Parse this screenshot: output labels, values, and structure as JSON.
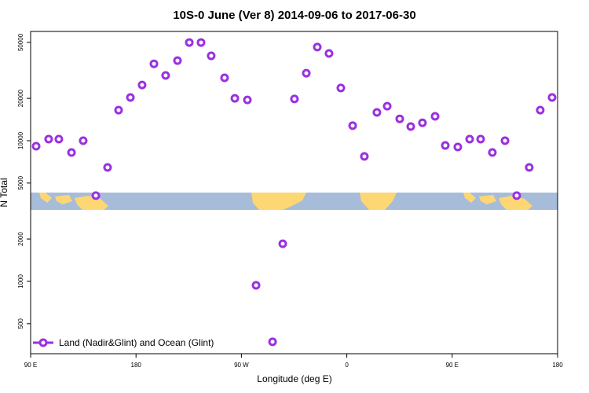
{
  "chart_data": {
    "type": "scatter",
    "title": "10S-0 June (Ver 8)   2014-09-06 to 2017-06-30",
    "x_label": "Longitude (deg E)",
    "y_label": "N Total",
    "log_y": true,
    "legend": "bottom-left",
    "xlim": [
      90,
      540
    ],
    "xticks": [
      {
        "value": 90,
        "label": "90 E"
      },
      180,
      {
        "value": 270,
        "label": "90 W"
      },
      {
        "value": 360,
        "label": "0"
      },
      {
        "value": 450,
        "label": "90 E"
      },
      {
        "value": 540,
        "label": "180"
      }
    ],
    "ylim": [
      306,
      59800
    ],
    "yticks": [
      500,
      1000,
      2000,
      5000,
      10000,
      20000,
      50000
    ],
    "series": [
      {
        "name": "Land (Nadir&Glint) and Ocean (Glint)",
        "color": "#9b30e0",
        "x": [
          94.7,
          105.4,
          114.1,
          124.9,
          134.9,
          145.7,
          155.7,
          165.1,
          175.2,
          185.2,
          195.3,
          205.3,
          215.4,
          225.5,
          235.5,
          244.2,
          255.6,
          264.4,
          275.1,
          282.5,
          296.6,
          305.3,
          315.3,
          325.4,
          334.8,
          344.8,
          354.9,
          365.0,
          375.0,
          385.7,
          394.5,
          405.2,
          414.6,
          424.6,
          435.4,
          444.1,
          454.8,
          464.9,
          474.3,
          484.3,
          495.1,
          505.1,
          515.8,
          525.2,
          535.3
        ],
        "values": [
          9140,
          10260,
          10260,
          8240,
          10000,
          4070,
          6460,
          16500,
          20300,
          24900,
          35200,
          29100,
          37100,
          49900,
          49900,
          40100,
          28000,
          20000,
          19500,
          938,
          372,
          1850,
          19800,
          30200,
          46300,
          41700,
          23700,
          12800,
          7730,
          15900,
          17600,
          14300,
          12600,
          13400,
          14900,
          9250,
          9020,
          10260,
          10260,
          8240,
          10000,
          4070,
          6460,
          16500,
          20300
        ]
      }
    ]
  }
}
